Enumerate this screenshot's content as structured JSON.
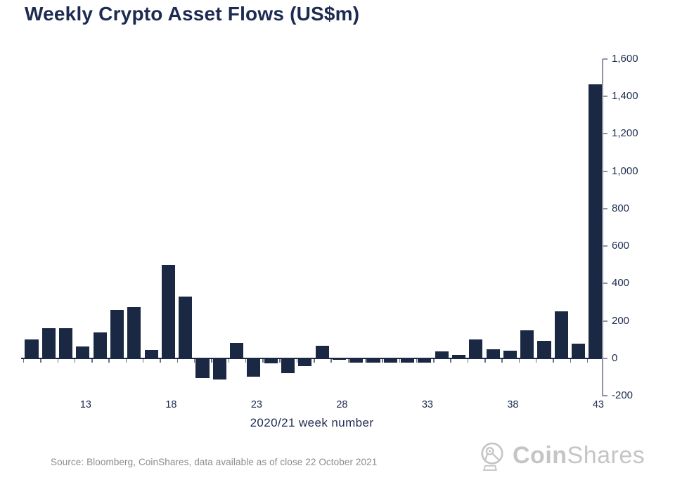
{
  "title": "Weekly Crypto Asset Flows (US$m)",
  "source_note": "Source: Bloomberg, CoinShares, data available as of close 22 October 2021",
  "logo": {
    "text_bold": "Coin",
    "text_light": "Shares",
    "icon": "coinshares-dish-icon"
  },
  "colors": {
    "bar": "#1b2844",
    "title_text": "#1d2b52",
    "tick_label_text": "#1d2c50",
    "axis_line": "#8e93a6",
    "baseline": "#1b2844",
    "minor_tick": "#6b7186",
    "source_text": "#8c8c8c",
    "logo_gray": "#c5c5c7",
    "background": "#ffffff"
  },
  "chart_data": {
    "type": "bar",
    "title": "Weekly Crypto Asset Flows (US$m)",
    "xlabel": "2020/21 week number",
    "ylabel": "",
    "x": [
      10,
      11,
      12,
      13,
      14,
      15,
      16,
      17,
      18,
      19,
      20,
      21,
      22,
      23,
      24,
      25,
      26,
      27,
      28,
      29,
      30,
      31,
      32,
      33,
      34,
      35,
      36,
      37,
      38,
      39,
      40,
      41,
      42,
      43
    ],
    "values": [
      100,
      160,
      160,
      64,
      138,
      258,
      273,
      44,
      500,
      330,
      -108,
      -112,
      82,
      -100,
      -26,
      -79,
      -41,
      67,
      -8,
      -22,
      -25,
      -22,
      -24,
      -25,
      38,
      20,
      99,
      48,
      42,
      148,
      92,
      250,
      78,
      1466
    ],
    "x_ticks_at": [
      13,
      18,
      23,
      28,
      33,
      38,
      43
    ],
    "x_tick_labels": [
      "13",
      "18",
      "23",
      "28",
      "33",
      "38",
      "43"
    ],
    "y_ticks": [
      -200,
      0,
      200,
      400,
      600,
      800,
      1000,
      1200,
      1400,
      1600
    ],
    "y_tick_labels": [
      "-200",
      "0",
      "200",
      "400",
      "600",
      "800",
      "1,000",
      "1,200",
      "1,400",
      "1,600"
    ],
    "ylim": [
      -200,
      1600
    ],
    "grid": false,
    "y_axis_side": "right",
    "legend": null
  }
}
